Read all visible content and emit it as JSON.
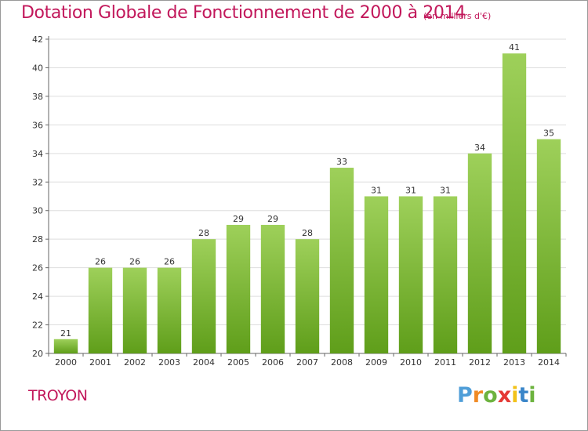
{
  "header": {
    "title": "Dotation Globale de Fonctionnement de 2000 à 2014",
    "subtitle": "(en milliers d'€)"
  },
  "footer": {
    "commune": "TROYON",
    "logo_letters": [
      "P",
      "r",
      "o",
      "x",
      "i",
      "t",
      "i"
    ]
  },
  "colors": {
    "title": "#c2185b",
    "bar_top": "#9ed05a",
    "bar_bottom": "#5f9e1a",
    "grid": "#dddddd"
  },
  "chart_data": {
    "type": "bar",
    "title": "Dotation Globale de Fonctionnement de 2000 à 2014",
    "subtitle": "(en milliers d'€)",
    "xlabel": "",
    "ylabel": "",
    "ylim": [
      20,
      42
    ],
    "yticks": [
      20,
      22,
      24,
      26,
      28,
      30,
      32,
      34,
      36,
      38,
      40,
      42
    ],
    "grid": true,
    "categories": [
      "2000",
      "2001",
      "2002",
      "2003",
      "2004",
      "2005",
      "2006",
      "2007",
      "2008",
      "2009",
      "2010",
      "2011",
      "2012",
      "2013",
      "2014"
    ],
    "values": [
      21,
      26,
      26,
      26,
      28,
      29,
      29,
      28,
      33,
      31,
      31,
      31,
      34,
      41,
      35
    ]
  }
}
